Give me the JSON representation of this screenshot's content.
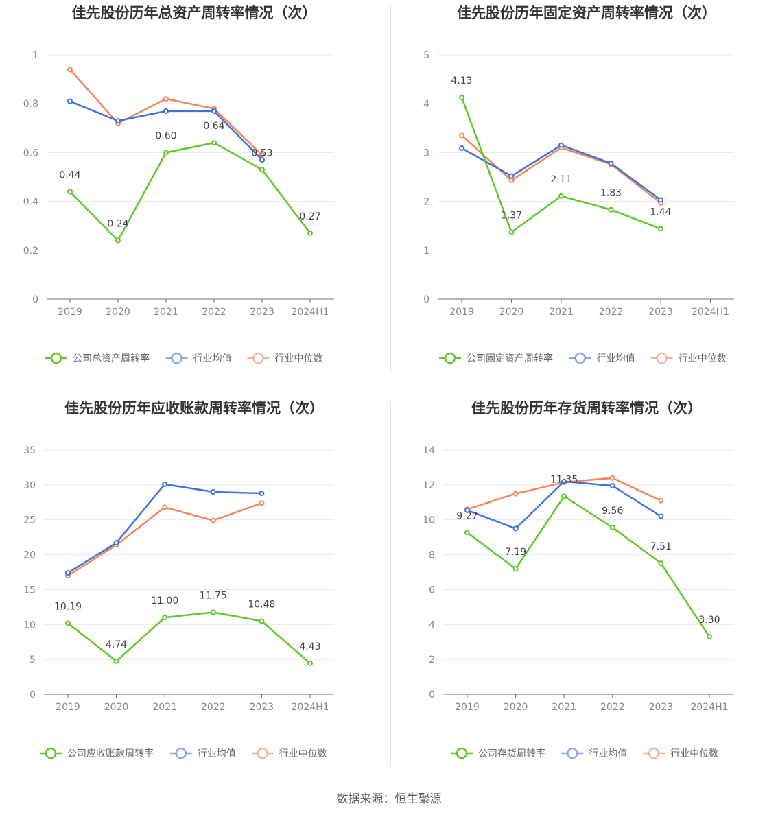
{
  "source_text": "数据来源：恒生聚源",
  "colors": {
    "company": "#5ec829",
    "avg": "#3f73dc",
    "median": "#f0865a"
  },
  "chart_data": [
    {
      "type": "line",
      "title": "佳先股份历年总资产周转率情况（次）",
      "categories": [
        "2019",
        "2020",
        "2021",
        "2022",
        "2023",
        "2024H1"
      ],
      "ylim": [
        0,
        1
      ],
      "yticks": [
        "0",
        "0.2",
        "0.4",
        "0.6",
        "0.8",
        "1"
      ],
      "ytick_values": [
        0,
        0.2,
        0.4,
        0.6,
        0.8,
        1
      ],
      "legend_position": "bottom",
      "series": [
        {
          "name": "公司总资产周转率",
          "color": "#5ec829",
          "values": [
            0.44,
            0.24,
            0.6,
            0.64,
            0.53,
            0.27
          ],
          "labels": [
            "0.44",
            "0.24",
            "0.60",
            "0.64",
            "0.53",
            "0.27"
          ]
        },
        {
          "name": "行业均值",
          "color": "#3f73dc",
          "values": [
            0.81,
            0.73,
            0.77,
            0.77,
            0.57,
            null
          ]
        },
        {
          "name": "行业中位数",
          "color": "#f0865a",
          "values": [
            0.94,
            0.72,
            0.82,
            0.78,
            0.59,
            null
          ]
        }
      ]
    },
    {
      "type": "line",
      "title": "佳先股份历年固定资产周转率情况（次）",
      "categories": [
        "2019",
        "2020",
        "2021",
        "2022",
        "2023",
        "2024H1"
      ],
      "ylim": [
        0,
        5
      ],
      "yticks": [
        "0",
        "1",
        "2",
        "3",
        "4",
        "5"
      ],
      "ytick_values": [
        0,
        1,
        2,
        3,
        4,
        5
      ],
      "legend_position": "bottom",
      "series": [
        {
          "name": "公司固定资产周转率",
          "color": "#5ec829",
          "values": [
            4.13,
            1.37,
            2.11,
            1.83,
            1.44,
            null
          ],
          "labels": [
            "4.13",
            "1.37",
            "2.11",
            "1.83",
            "1.44",
            ""
          ]
        },
        {
          "name": "行业均值",
          "color": "#3f73dc",
          "values": [
            3.09,
            2.52,
            3.15,
            2.78,
            2.03,
            null
          ]
        },
        {
          "name": "行业中位数",
          "color": "#f0865a",
          "values": [
            3.35,
            2.43,
            3.1,
            2.76,
            1.97,
            null
          ]
        }
      ]
    },
    {
      "type": "line",
      "title": "佳先股份历年应收账款周转率情况（次）",
      "categories": [
        "2019",
        "2020",
        "2021",
        "2022",
        "2023",
        "2024H1"
      ],
      "ylim": [
        0,
        35
      ],
      "yticks": [
        "0",
        "5",
        "10",
        "15",
        "20",
        "25",
        "30",
        "35"
      ],
      "ytick_values": [
        0,
        5,
        10,
        15,
        20,
        25,
        30,
        35
      ],
      "legend_position": "bottom",
      "series": [
        {
          "name": "公司应收账款周转率",
          "color": "#5ec829",
          "values": [
            10.19,
            4.74,
            11.0,
            11.75,
            10.48,
            4.43
          ],
          "labels": [
            "10.19",
            "4.74",
            "11.00",
            "11.75",
            "10.48",
            "4.43"
          ]
        },
        {
          "name": "行业均值",
          "color": "#3f73dc",
          "values": [
            17.4,
            21.7,
            30.1,
            29.0,
            28.8,
            null
          ]
        },
        {
          "name": "行业中位数",
          "color": "#f0865a",
          "values": [
            17.0,
            21.4,
            26.8,
            24.9,
            27.4,
            null
          ]
        }
      ]
    },
    {
      "type": "line",
      "title": "佳先股份历年存货周转率情况（次）",
      "categories": [
        "2019",
        "2020",
        "2021",
        "2022",
        "2023",
        "2024H1"
      ],
      "ylim": [
        0,
        14
      ],
      "yticks": [
        "0",
        "2",
        "4",
        "6",
        "8",
        "10",
        "12",
        "14"
      ],
      "ytick_values": [
        0,
        2,
        4,
        6,
        8,
        10,
        12,
        14
      ],
      "legend_position": "bottom",
      "series": [
        {
          "name": "公司存货周转率",
          "color": "#5ec829",
          "values": [
            9.27,
            7.19,
            11.35,
            9.56,
            7.51,
            3.3
          ],
          "labels": [
            "9.27",
            "7.19",
            "11.35",
            "9.56",
            "7.51",
            "3.30"
          ]
        },
        {
          "name": "行业均值",
          "color": "#3f73dc",
          "values": [
            10.55,
            9.5,
            12.2,
            11.95,
            10.2,
            null
          ]
        },
        {
          "name": "行业中位数",
          "color": "#f0865a",
          "values": [
            10.6,
            11.5,
            12.15,
            12.4,
            11.1,
            null
          ]
        }
      ]
    }
  ]
}
